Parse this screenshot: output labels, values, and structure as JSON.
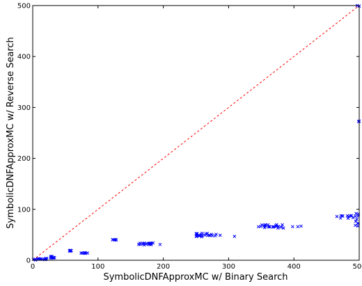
{
  "chart_data": {
    "type": "scatter",
    "title": "",
    "xlabel": "SymbolicDNFApproxMC w/ Binary Search",
    "ylabel": "SymbolicDNFApproxMC w/ Reverse Search",
    "xlim": [
      0,
      500
    ],
    "ylim": [
      0,
      500
    ],
    "xticks": [
      "0",
      "100",
      "200",
      "300",
      "400",
      "500"
    ],
    "yticks": [
      "0",
      "100",
      "200",
      "300",
      "400",
      "500"
    ],
    "xtick_values": [
      0,
      100,
      200,
      300,
      400,
      500
    ],
    "ytick_values": [
      0,
      100,
      200,
      300,
      400,
      500
    ],
    "grid": false,
    "marker": "x",
    "colors": {
      "points": "#0000ff",
      "diagonal": "#ff0000",
      "axes": "#000000"
    },
    "reference_line": {
      "from": [
        0,
        0
      ],
      "to": [
        500,
        500
      ],
      "style": "dashed"
    },
    "clusters": [
      {
        "x_range": [
          0,
          6
        ],
        "y_range": [
          0,
          2
        ],
        "count": 6
      },
      {
        "x_range": [
          6,
          22
        ],
        "y_range": [
          1,
          4
        ],
        "count": 14
      },
      {
        "x_range": [
          22,
          36
        ],
        "y_range": [
          4,
          8
        ],
        "count": 10
      },
      {
        "x_range": [
          55,
          60
        ],
        "y_range": [
          18,
          20
        ],
        "count": 6
      },
      {
        "x_range": [
          74,
          85
        ],
        "y_range": [
          13,
          15
        ],
        "count": 8
      },
      {
        "x_range": [
          121,
          128
        ],
        "y_range": [
          39,
          41
        ],
        "count": 6
      },
      {
        "x_range": [
          162,
          190
        ],
        "y_range": [
          30,
          34
        ],
        "count": 18
      },
      {
        "x_range": [
          247,
          282
        ],
        "y_range": [
          46,
          53
        ],
        "count": 22
      },
      {
        "x_range": [
          344,
          385
        ],
        "y_range": [
          63,
          70
        ],
        "count": 24
      },
      {
        "x_range": [
          465,
          497
        ],
        "y_range": [
          82,
          88
        ],
        "count": 12
      },
      {
        "x_range": [
          493,
          500
        ],
        "y_range": [
          66,
          96
        ],
        "count": 8
      }
    ],
    "points": [
      {
        "x": 195,
        "y": 31
      },
      {
        "x": 287,
        "y": 49
      },
      {
        "x": 309,
        "y": 47
      },
      {
        "x": 398,
        "y": 66
      },
      {
        "x": 406,
        "y": 66
      },
      {
        "x": 411,
        "y": 67
      },
      {
        "x": 500,
        "y": 273
      },
      {
        "x": 499,
        "y": 272
      },
      {
        "x": 500,
        "y": 499
      },
      {
        "x": 497,
        "y": 500
      },
      {
        "x": 498,
        "y": 67
      }
    ]
  }
}
